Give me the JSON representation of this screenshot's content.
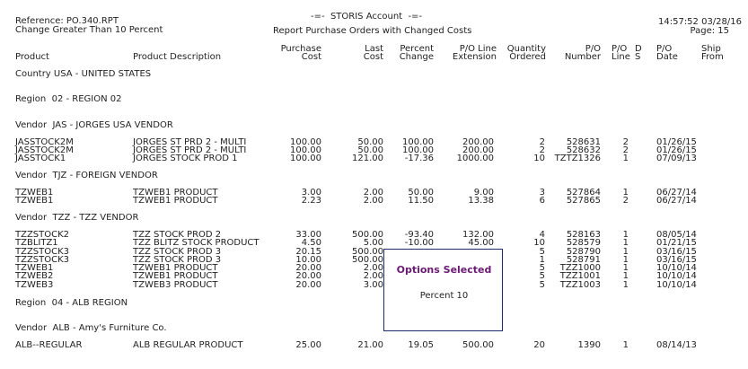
{
  "report": {
    "reference": "Reference: PO.340.RPT",
    "criteria": "Change Greater Than 10 Percent",
    "system": "-=-  STORIS Account  -=-",
    "title": "Report Purchase Orders with Changed Costs",
    "time": "14:57:52 03/28/16",
    "page": "Page: 15"
  },
  "columns": {
    "product": "Product",
    "description": "Product Description",
    "purchase_cost_1": "Purchase",
    "purchase_cost_2": "Cost",
    "last_cost_1": "Last",
    "last_cost_2": "Cost",
    "percent_change_1": "Percent",
    "percent_change_2": "Change",
    "extension_1": "P/O Line",
    "extension_2": "Extension",
    "quantity_1": "Quantity",
    "quantity_2": "Ordered",
    "po_number_1": "P/O",
    "po_number_2": "Number",
    "po_line_1": "P/O",
    "po_line_2": "Line",
    "ds_1": "D",
    "ds_2": "S",
    "po_date_1": "P/O",
    "po_date_2": "Date",
    "ship_from_1": "Ship",
    "ship_from_2": "From"
  },
  "groups": {
    "country": "Country USA - UNITED STATES",
    "region_02": "Region  02 - REGION 02",
    "vendor_jas": "Vendor  JAS - JORGES USA VENDOR",
    "vendor_tjz": "Vendor  TJZ - FOREIGN VENDOR",
    "vendor_tzz": "Vendor  TZZ - TZZ VENDOR",
    "region_04": "Region  04 - ALB REGION",
    "vendor_alb": "Vendor  ALB - Amy's Furniture Co."
  },
  "rows": [
    [
      "JASSTOCK2M",
      "JORGES ST PRD 2 - MULTI",
      "100.00",
      "50.00",
      "100.00",
      "200.00",
      "2",
      "528631",
      "2",
      "01/26/15"
    ],
    [
      "JASSTOCK2M",
      "JORGES ST PRD 2 - MULTI",
      "100.00",
      "50.00",
      "100.00",
      "200.00",
      "2",
      "528632",
      "2",
      "01/26/15"
    ],
    [
      "JASSTOCK1",
      "JORGES STOCK PROD 1",
      "100.00",
      "121.00",
      "-17.36",
      "1000.00",
      "10",
      "TZTZ1326",
      "1",
      "07/09/13"
    ],
    [
      "TZWEB1",
      "TZWEB1 PRODUCT",
      "3.00",
      "2.00",
      "50.00",
      "9.00",
      "3",
      "527864",
      "1",
      "06/27/14"
    ],
    [
      "TZWEB1",
      "TZWEB1 PRODUCT",
      "2.23",
      "2.00",
      "11.50",
      "13.38",
      "6",
      "527865",
      "2",
      "06/27/14"
    ],
    [
      "TZZSTOCK2",
      "TZZ STOCK PROD 2",
      "33.00",
      "500.00",
      "-93.40",
      "132.00",
      "4",
      "528163",
      "1",
      "08/05/14"
    ],
    [
      "TZBLITZ1",
      "TZZ BLITZ STOCK PRODUCT",
      "4.50",
      "5.00",
      "-10.00",
      "45.00",
      "10",
      "528579",
      "1",
      "01/21/15"
    ],
    [
      "TZZSTOCK3",
      "TZZ STOCK PROD 3",
      "20.15",
      "500.00",
      "",
      "",
      "5",
      "528790",
      "1",
      "03/16/15"
    ],
    [
      "TZZSTOCK3",
      "TZZ STOCK PROD 3",
      "10.00",
      "500.00",
      "",
      "",
      "1",
      "528791",
      "1",
      "03/16/15"
    ],
    [
      "TZWEB1",
      "TZWEB1 PRODUCT",
      "20.00",
      "2.00",
      "",
      "",
      "5",
      "TZZ1000",
      "1",
      "10/10/14"
    ],
    [
      "TZWEB2",
      "TZWEB1 PRODUCT",
      "20.00",
      "2.00",
      "",
      "",
      "5",
      "TZZ1001",
      "1",
      "10/10/14"
    ],
    [
      "TZWEB3",
      "TZWEB3 PRODUCT",
      "20.00",
      "3.00",
      "",
      "",
      "5",
      "TZZ1003",
      "1",
      "10/10/14"
    ],
    [
      "ALB--REGULAR",
      "ALB REGULAR PRODUCT",
      "25.00",
      "21.00",
      "19.05",
      "500.00",
      "20",
      "1390",
      "1",
      "08/14/13"
    ]
  ],
  "popup": {
    "title": "Options Selected",
    "body": "Percent 10"
  }
}
